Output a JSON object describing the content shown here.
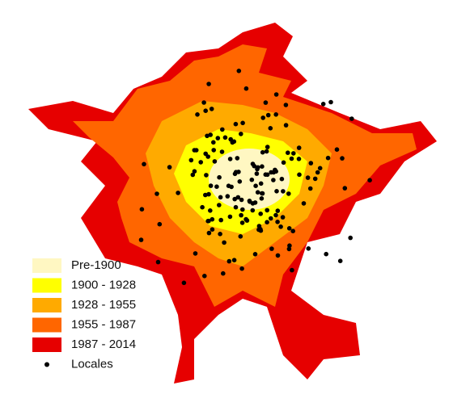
{
  "legend": {
    "items": [
      {
        "label": "Pre-1900",
        "color": "#fff7c2"
      },
      {
        "label": "1900 - 1928",
        "color": "#ffff00"
      },
      {
        "label": "1928 - 1955",
        "color": "#ffaa00"
      },
      {
        "label": "1955 - 1987",
        "color": "#ff6600"
      },
      {
        "label": "1987 - 2014",
        "color": "#e60000"
      }
    ],
    "points_label": "Locales"
  }
}
